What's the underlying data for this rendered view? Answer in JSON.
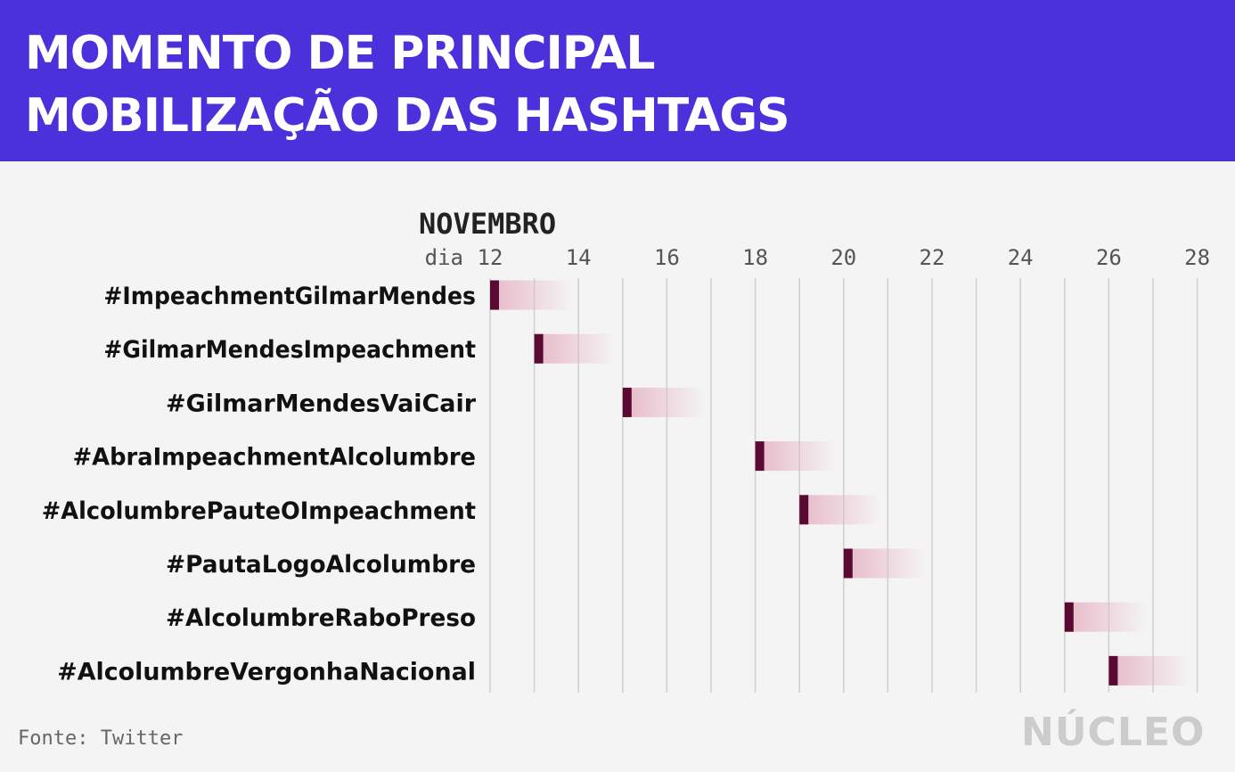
{
  "header": {
    "title_line1": "MOMENTO DE PRINCIPAL",
    "title_line2": "MOBILIZAÇÃO DAS HASHTAGS"
  },
  "chart_data": {
    "type": "bar",
    "month_label": "NOVEMBRO",
    "day_prefix": "dia",
    "x_ticks": [
      12,
      14,
      16,
      18,
      20,
      22,
      24,
      26,
      28
    ],
    "xlim": [
      12,
      28
    ],
    "grid": true,
    "colors": {
      "marker": "#5a0a32",
      "fade": "#e7b8c8",
      "grid": "#cfcfcf"
    },
    "categories": [
      "#ImpeachmentGilmarMendes",
      "#GilmarMendesImpeachment",
      "#GilmarMendesVaiCair",
      "#AbraImpeachmentAlcolumbre",
      "#AlcolumbrePauteOImpeachment",
      "#PautaLogoAlcolumbre",
      "#AlcolumbreRaboPreso",
      "#AlcolumbreVergonhaNacional"
    ],
    "values": [
      12,
      13,
      15,
      18,
      19,
      20,
      25,
      26
    ]
  },
  "footer": {
    "source": "Fonte: Twitter",
    "logo": "NÚCLEO"
  }
}
